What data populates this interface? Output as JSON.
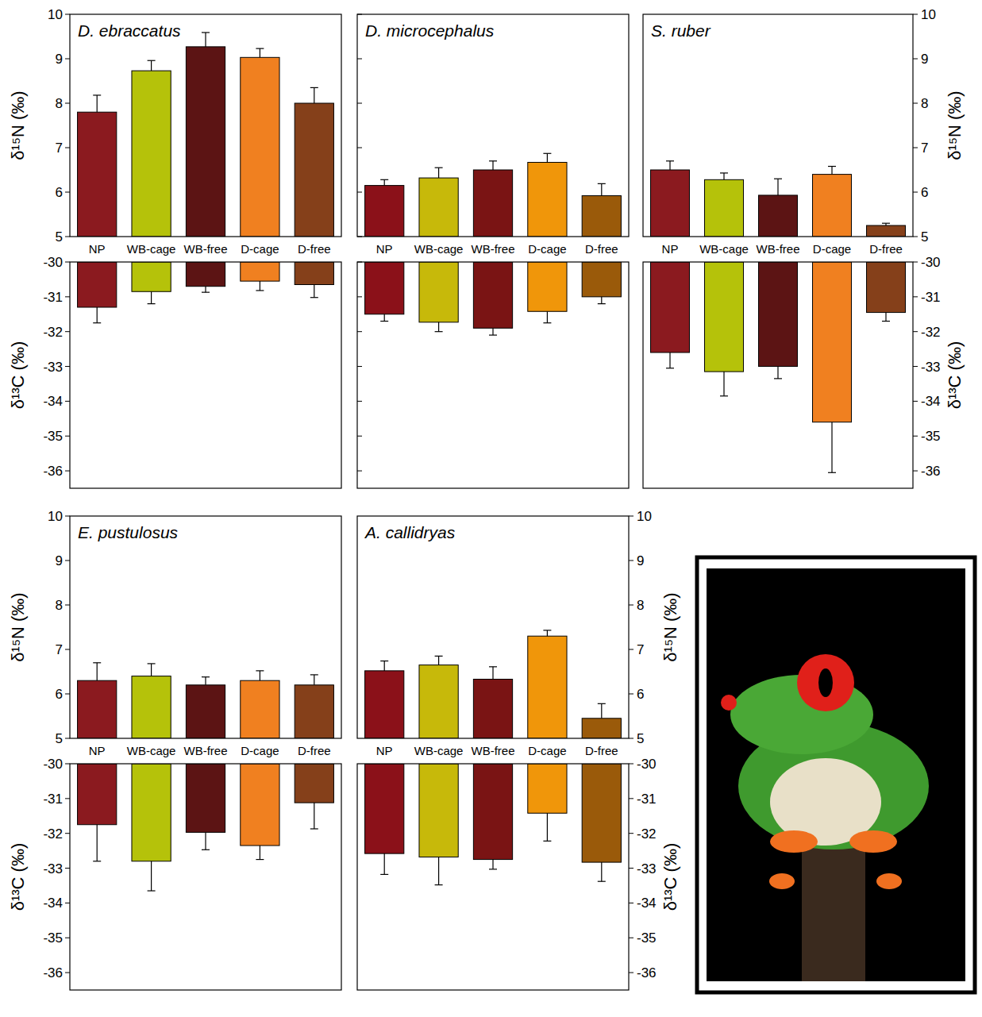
{
  "chart_data": [
    {
      "type": "bar",
      "title": "D. ebraccatus",
      "y_label": "δ¹⁵N (‰)",
      "categories": [
        "NP",
        "WB-cage",
        "WB-free",
        "D-cage",
        "D-free"
      ],
      "values": [
        7.8,
        8.73,
        9.27,
        9.03,
        8.0
      ],
      "errors": [
        0.38,
        0.23,
        0.32,
        0.2,
        0.35
      ],
      "colors": [
        "#8b1a1f",
        "#b5c20a",
        "#5c1414",
        "#f08020",
        "#85401a"
      ],
      "ylim": [
        5,
        10
      ],
      "yticks": [
        5,
        6,
        7,
        8,
        9,
        10
      ]
    },
    {
      "type": "bar",
      "y_label": "δ¹³C (‰)",
      "categories": [
        null,
        null,
        null,
        null,
        null
      ],
      "values": [
        -31.3,
        -30.85,
        -30.7,
        -30.55,
        -30.65
      ],
      "errors": [
        0.45,
        0.35,
        0.17,
        0.27,
        0.37
      ],
      "colors": [
        "#8b1a1f",
        "#b5c20a",
        "#5c1414",
        "#f08020",
        "#85401a"
      ],
      "ylim": [
        -36.5,
        -30
      ],
      "yticks": [
        -36,
        -35,
        -34,
        -33,
        -32,
        -31,
        -30
      ]
    },
    {
      "type": "bar",
      "title": "D. microcephalus",
      "tick_labels": false,
      "categories": [
        "NP",
        "WB-cage",
        "WB-free",
        "D-cage",
        "D-free"
      ],
      "values": [
        6.15,
        6.32,
        6.5,
        6.67,
        5.92
      ],
      "errors": [
        0.13,
        0.23,
        0.2,
        0.2,
        0.27
      ],
      "colors": [
        "#8b1119",
        "#c7b90a",
        "#7a1414",
        "#f0960a",
        "#9a5a0a"
      ],
      "ylim": [
        5,
        10
      ],
      "yticks": [
        5,
        6,
        7,
        8,
        9,
        10
      ]
    },
    {
      "type": "bar",
      "tick_labels": false,
      "categories": [
        null,
        null,
        null,
        null,
        null
      ],
      "values": [
        -31.5,
        -31.73,
        -31.9,
        -31.42,
        -31.0
      ],
      "errors": [
        0.2,
        0.27,
        0.2,
        0.33,
        0.2
      ],
      "colors": [
        "#8b1119",
        "#c7b90a",
        "#7a1414",
        "#f0960a",
        "#9a5a0a"
      ],
      "ylim": [
        -36.5,
        -30
      ],
      "yticks": [
        -36,
        -35,
        -34,
        -33,
        -32,
        -31,
        -30
      ]
    },
    {
      "type": "bar",
      "title": "S. ruber",
      "y_label": "δ¹⁵N (‰)",
      "categories": [
        "NP",
        "WB-cage",
        "WB-free",
        "D-cage",
        "D-free"
      ],
      "values": [
        6.5,
        6.28,
        5.93,
        6.4,
        5.25
      ],
      "errors": [
        0.2,
        0.15,
        0.37,
        0.18,
        0.05
      ],
      "colors": [
        "#8b1a1f",
        "#b5c20a",
        "#5c1414",
        "#f08020",
        "#85401a"
      ],
      "ylim": [
        5,
        10
      ],
      "yticks": [
        5,
        6,
        7,
        8,
        9,
        10
      ]
    },
    {
      "type": "bar",
      "y_label": "δ¹³C (‰)",
      "categories": [
        null,
        null,
        null,
        null,
        null
      ],
      "values": [
        -32.6,
        -33.15,
        -33.0,
        -34.6,
        -31.45
      ],
      "errors": [
        0.45,
        0.7,
        0.35,
        1.45,
        0.25
      ],
      "colors": [
        "#8b1a1f",
        "#b5c20a",
        "#5c1414",
        "#f08020",
        "#85401a"
      ],
      "ylim": [
        -36.5,
        -30
      ],
      "yticks": [
        -36,
        -35,
        -34,
        -33,
        -32,
        -31,
        -30
      ]
    },
    {
      "type": "bar",
      "title": "E. pustulosus",
      "y_label": "δ¹⁵N (‰)",
      "categories": [
        "NP",
        "WB-cage",
        "WB-free",
        "D-cage",
        "D-free"
      ],
      "values": [
        6.3,
        6.4,
        6.2,
        6.3,
        6.2
      ],
      "errors": [
        0.4,
        0.28,
        0.18,
        0.22,
        0.23
      ],
      "colors": [
        "#8b1a1f",
        "#b5c20a",
        "#5c1414",
        "#f08020",
        "#85401a"
      ],
      "ylim": [
        5,
        10
      ],
      "yticks": [
        5,
        6,
        7,
        8,
        9,
        10
      ]
    },
    {
      "type": "bar",
      "y_label": "δ¹³C (‰)",
      "categories": [
        null,
        null,
        null,
        null,
        null
      ],
      "values": [
        -31.75,
        -32.8,
        -31.97,
        -32.35,
        -31.12
      ],
      "errors": [
        1.05,
        0.85,
        0.5,
        0.4,
        0.75
      ],
      "colors": [
        "#8b1a1f",
        "#b5c20a",
        "#5c1414",
        "#f08020",
        "#85401a"
      ],
      "ylim": [
        -36.5,
        -30
      ],
      "yticks": [
        -36,
        -35,
        -34,
        -33,
        -32,
        -31,
        -30
      ]
    },
    {
      "type": "bar",
      "title": "A. callidryas",
      "y_label": "δ¹⁵N (‰)",
      "categories": [
        "NP",
        "WB-cage",
        "WB-free",
        "D-cage",
        "D-free"
      ],
      "values": [
        6.52,
        6.65,
        6.33,
        7.3,
        5.45
      ],
      "errors": [
        0.22,
        0.2,
        0.28,
        0.13,
        0.33
      ],
      "colors": [
        "#8b1119",
        "#c7b90a",
        "#7a1414",
        "#f0960a",
        "#9a5a0a"
      ],
      "ylim": [
        5,
        10
      ],
      "yticks": [
        5,
        6,
        7,
        8,
        9,
        10
      ]
    },
    {
      "type": "bar",
      "y_label": "δ¹³C (‰)",
      "categories": [
        null,
        null,
        null,
        null,
        null
      ],
      "values": [
        -32.58,
        -32.68,
        -32.75,
        -31.42,
        -32.83
      ],
      "errors": [
        0.6,
        0.8,
        0.28,
        0.8,
        0.55
      ],
      "colors": [
        "#8b1119",
        "#c7b90a",
        "#7a1414",
        "#f0960a",
        "#9a5a0a"
      ],
      "ylim": [
        -36.5,
        -30
      ],
      "yticks": [
        -36,
        -35,
        -34,
        -33,
        -32,
        -31,
        -30
      ]
    }
  ]
}
